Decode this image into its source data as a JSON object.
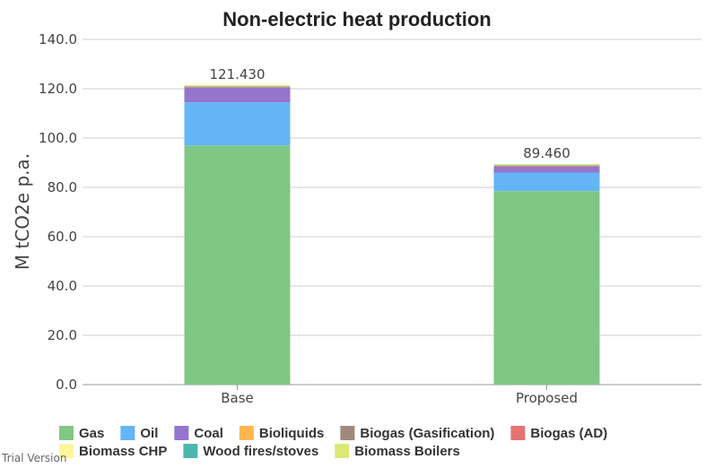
{
  "chart_data": {
    "type": "bar",
    "stacked": true,
    "title": "Non-electric heat production",
    "xlabel": "",
    "ylabel": "M tCO2e p.a.",
    "ylim": [
      0,
      140
    ],
    "yticks": [
      "0.0",
      "20.0",
      "40.0",
      "60.0",
      "80.0",
      "100.0",
      "120.0",
      "140.0"
    ],
    "grid": true,
    "legend_position": "bottom",
    "categories": [
      "Base",
      "Proposed"
    ],
    "totals": [
      "121.430",
      "89.460"
    ],
    "series": [
      {
        "name": "Gas",
        "color": "#81c784",
        "values": [
          97.0,
          78.5
        ]
      },
      {
        "name": "Oil",
        "color": "#64b5f6",
        "values": [
          17.5,
          7.5
        ]
      },
      {
        "name": "Coal",
        "color": "#9575cd",
        "values": [
          6.0,
          2.5
        ]
      },
      {
        "name": "Bioliquids",
        "color": "#ffb74d",
        "values": [
          0.1,
          0.1
        ]
      },
      {
        "name": "Biogas (Gasification)",
        "color": "#a1887f",
        "values": [
          0.1,
          0.1
        ]
      },
      {
        "name": "Biogas (AD)",
        "color": "#e57373",
        "values": [
          0.1,
          0.1
        ]
      },
      {
        "name": "Biomass CHP",
        "color": "#fff59d",
        "values": [
          0.2,
          0.2
        ]
      },
      {
        "name": "Wood fires/stoves",
        "color": "#4db6ac",
        "values": [
          0.1,
          0.1
        ]
      },
      {
        "name": "Biomass Boilers",
        "color": "#dce775",
        "values": [
          0.33,
          0.36
        ]
      }
    ]
  },
  "watermark": "Trial Version"
}
